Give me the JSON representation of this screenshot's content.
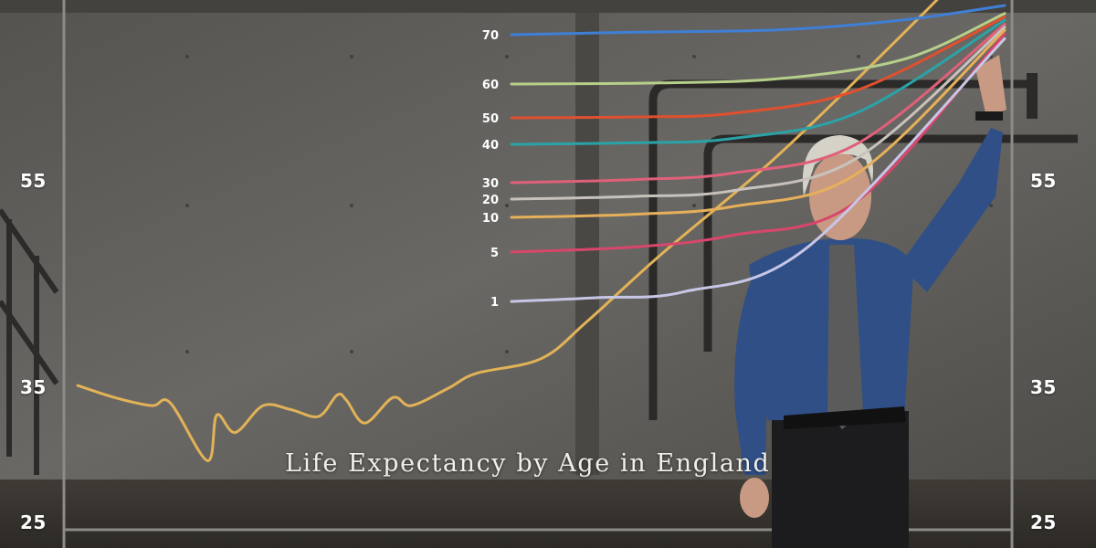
{
  "chart_data": {
    "type": "line",
    "title": "Life Expectancy by Age in England",
    "y_axis": {
      "tick_labels": [
        "55",
        "35",
        "25"
      ]
    },
    "series": [
      {
        "name": "70",
        "color": "#3f7fd6",
        "points": [
          [
            0,
            70.0
          ],
          [
            0.25,
            70.3
          ],
          [
            0.55,
            70.6
          ],
          [
            0.8,
            71.8
          ],
          [
            1.0,
            73.5
          ]
        ]
      },
      {
        "name": "60",
        "color": "#b6cf8a",
        "points": [
          [
            0,
            60.0
          ],
          [
            0.3,
            60.2
          ],
          [
            0.55,
            61.0
          ],
          [
            0.8,
            64.5
          ],
          [
            1.0,
            72.5
          ]
        ]
      },
      {
        "name": "50",
        "color": "#e0502f",
        "points": [
          [
            0,
            50.0
          ],
          [
            0.25,
            50.2
          ],
          [
            0.45,
            51.0
          ],
          [
            0.7,
            56.0
          ],
          [
            1.0,
            72.0
          ]
        ]
      },
      {
        "name": "40",
        "color": "#2aa3a8",
        "points": [
          [
            0,
            40.0
          ],
          [
            0.25,
            40.4
          ],
          [
            0.45,
            41.5
          ],
          [
            0.7,
            48.0
          ],
          [
            1.0,
            71.5
          ]
        ]
      },
      {
        "name": "30",
        "color": "#e0607a",
        "points": [
          [
            0,
            30.0
          ],
          [
            0.25,
            30.8
          ],
          [
            0.45,
            32.5
          ],
          [
            0.7,
            40.0
          ],
          [
            1.0,
            71.0
          ]
        ]
      },
      {
        "name": "20",
        "color": "#c8c2bc",
        "points": [
          [
            0,
            20.0
          ],
          [
            0.25,
            20.8
          ],
          [
            0.45,
            22.5
          ],
          [
            0.7,
            32.0
          ],
          [
            1.0,
            70.5
          ]
        ]
      },
      {
        "name": "10",
        "color": "#e6b05a",
        "points": [
          [
            0,
            10.0
          ],
          [
            0.25,
            11.0
          ],
          [
            0.45,
            13.5
          ],
          [
            0.7,
            24.0
          ],
          [
            1.0,
            70.0
          ]
        ]
      },
      {
        "name": "5",
        "color": "#d9466b",
        "points": [
          [
            0,
            5.0
          ],
          [
            0.25,
            6.5
          ],
          [
            0.45,
            10.0
          ],
          [
            0.7,
            20.0
          ],
          [
            1.0,
            69.5
          ]
        ]
      },
      {
        "name": "1",
        "color": "#c8c6e6",
        "points": [
          [
            0,
            1.0
          ],
          [
            0.18,
            2.0
          ],
          [
            0.35,
            3.5
          ],
          [
            0.6,
            15.0
          ],
          [
            1.0,
            69.0
          ]
        ]
      }
    ],
    "birth_series": {
      "color": "#e2b258",
      "points": [
        [
          0.0,
          35.2
        ],
        [
          0.04,
          34.3
        ],
        [
          0.08,
          33.7
        ],
        [
          0.1,
          33.9
        ],
        [
          0.14,
          29.6
        ],
        [
          0.15,
          33.0
        ],
        [
          0.17,
          31.7
        ],
        [
          0.2,
          33.7
        ],
        [
          0.23,
          33.4
        ],
        [
          0.26,
          32.9
        ],
        [
          0.28,
          34.5
        ],
        [
          0.29,
          34.1
        ],
        [
          0.31,
          32.4
        ],
        [
          0.34,
          34.3
        ],
        [
          0.36,
          33.7
        ],
        [
          0.4,
          35.0
        ],
        [
          0.43,
          36.1
        ],
        [
          0.5,
          37.2
        ],
        [
          0.55,
          40.0
        ],
        [
          0.63,
          45.0
        ],
        [
          0.75,
          52.0
        ],
        [
          0.87,
          60.0
        ],
        [
          1.0,
          69.0
        ]
      ]
    }
  }
}
